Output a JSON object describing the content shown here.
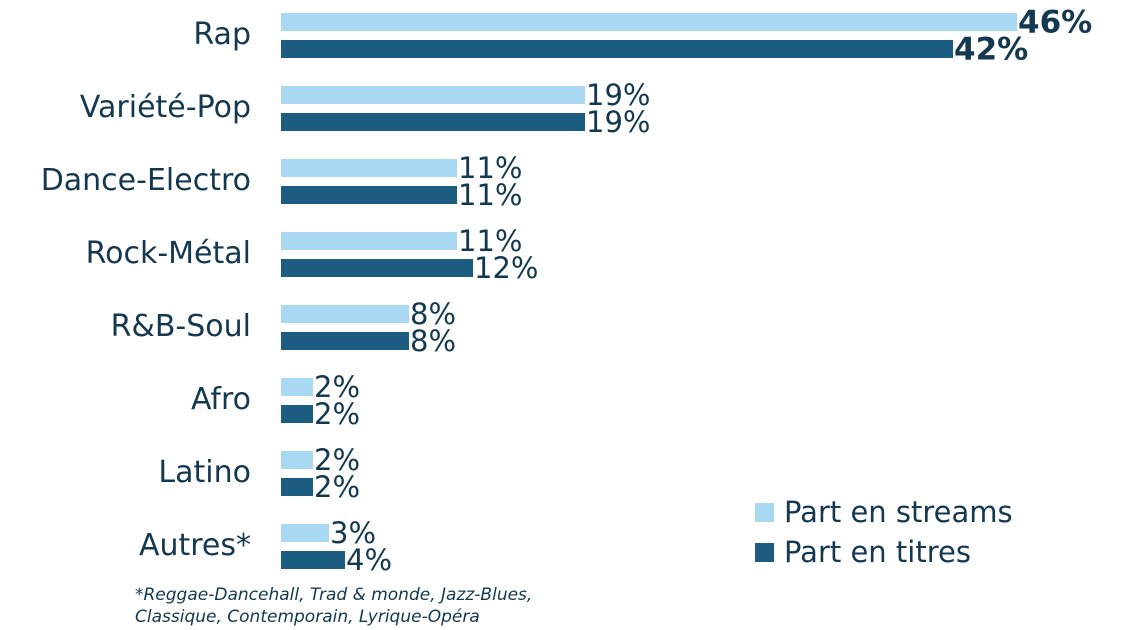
{
  "chart_data": {
    "type": "bar",
    "orientation": "horizontal",
    "categories": [
      "Rap",
      "Variété-Pop",
      "Dance-Electro",
      "Rock-Métal",
      "R&B-Soul",
      "Afro",
      "Latino",
      "Autres*"
    ],
    "series": [
      {
        "name": "Part en streams",
        "values": [
          46,
          19,
          11,
          11,
          8,
          2,
          2,
          3
        ],
        "color": "#a9d9f2"
      },
      {
        "name": "Part en titres",
        "values": [
          42,
          19,
          11,
          12,
          8,
          2,
          2,
          4
        ],
        "color": "#1b5c80"
      }
    ],
    "value_labels": {
      "streams": [
        "46%",
        "19%",
        "11%",
        "11%",
        "8%",
        "2%",
        "2%",
        "3%"
      ],
      "titres": [
        "42%",
        "19%",
        "11%",
        "12%",
        "8%",
        "2%",
        "2%",
        "4%"
      ]
    },
    "value_suffix": "%",
    "legend_position": "bottom-right",
    "grid": false,
    "footnote": "*Reggae-Dancehall, Trad & monde, Jazz-Blues, Classique, Contemporain, Lyrique-Opéra"
  },
  "legend": {
    "streams_label": "Part en streams",
    "titres_label": "Part en titres"
  },
  "colors": {
    "streams": "#a9d9f2",
    "titres": "#1b5c80",
    "text": "#14384f"
  }
}
